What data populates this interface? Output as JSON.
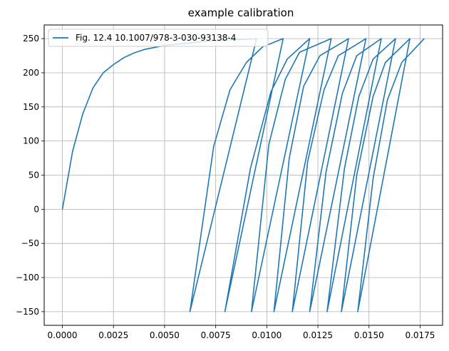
{
  "chart_data": {
    "type": "line",
    "title": "example calibration",
    "xlabel": "",
    "ylabel": "",
    "xlim": [
      -0.00089,
      0.0186
    ],
    "ylim": [
      -170,
      270
    ],
    "x_ticks": [
      0.0,
      0.0025,
      0.005,
      0.0075,
      0.01,
      0.0125,
      0.015,
      0.0175
    ],
    "x_tick_labels": [
      "0.0000",
      "0.0025",
      "0.0050",
      "0.0075",
      "0.0100",
      "0.0125",
      "0.0150",
      "0.0175"
    ],
    "y_ticks": [
      -150,
      -100,
      -50,
      0,
      50,
      100,
      150,
      200,
      250
    ],
    "y_tick_labels": [
      "−150",
      "−100",
      "−50",
      "0",
      "50",
      "100",
      "150",
      "200",
      "250"
    ],
    "grid": true,
    "legend_position": "upper-left",
    "series": [
      {
        "name": "Fig. 12.4 10.1007/978-3-030-93138-4",
        "color": "#1f77b4",
        "x": [
          0.0,
          0.0005,
          0.001,
          0.0015,
          0.002,
          0.0025,
          0.003,
          0.0035,
          0.004,
          0.005,
          0.006,
          0.007,
          0.008,
          0.009,
          0.0095,
          0.00624,
          0.0074,
          0.0082,
          0.009,
          0.0098,
          0.0108,
          0.00795,
          0.0092,
          0.0102,
          0.011,
          0.0121,
          0.00925,
          0.0101,
          0.0109,
          0.0116,
          0.01315,
          0.01035,
          0.0111,
          0.0118,
          0.0126,
          0.014,
          0.01125,
          0.012,
          0.0128,
          0.0135,
          0.01485,
          0.0121,
          0.0129,
          0.0137,
          0.0144,
          0.0156,
          0.01295,
          0.0138,
          0.0145,
          0.0152,
          0.0163,
          0.01365,
          0.0144,
          0.0152,
          0.0158,
          0.017,
          0.01445,
          0.0152,
          0.0159,
          0.0166,
          0.0177
        ],
        "y": [
          0,
          85,
          140,
          178,
          200,
          212,
          222,
          229,
          234,
          240,
          243,
          246,
          248,
          249,
          250,
          -150,
          92,
          175,
          215,
          238,
          250,
          -150,
          60,
          172,
          220,
          250,
          -150,
          95,
          190,
          230,
          250,
          -150,
          75,
          180,
          225,
          250,
          -150,
          70,
          175,
          225,
          250,
          -150,
          55,
          170,
          225,
          250,
          -150,
          60,
          165,
          220,
          250,
          -150,
          50,
          165,
          215,
          250,
          -150,
          45,
          160,
          215,
          250
        ]
      }
    ]
  }
}
